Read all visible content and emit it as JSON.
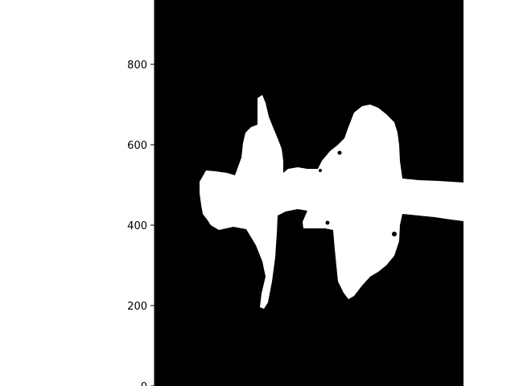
{
  "chart_data": {
    "type": "heatmap",
    "title": "",
    "xlabel": "",
    "ylabel": "",
    "ylim": [
      0,
      960
    ],
    "y_ticks": [
      {
        "value": 0,
        "label": "0"
      },
      {
        "value": 200,
        "label": "200"
      },
      {
        "value": 400,
        "label": "400"
      },
      {
        "value": 600,
        "label": "600"
      },
      {
        "value": 800,
        "label": "800"
      }
    ],
    "x_ticks": [],
    "grid": false,
    "colors": {
      "background": "#000000",
      "free_space": "#ffffff",
      "axis": "#000000"
    }
  }
}
